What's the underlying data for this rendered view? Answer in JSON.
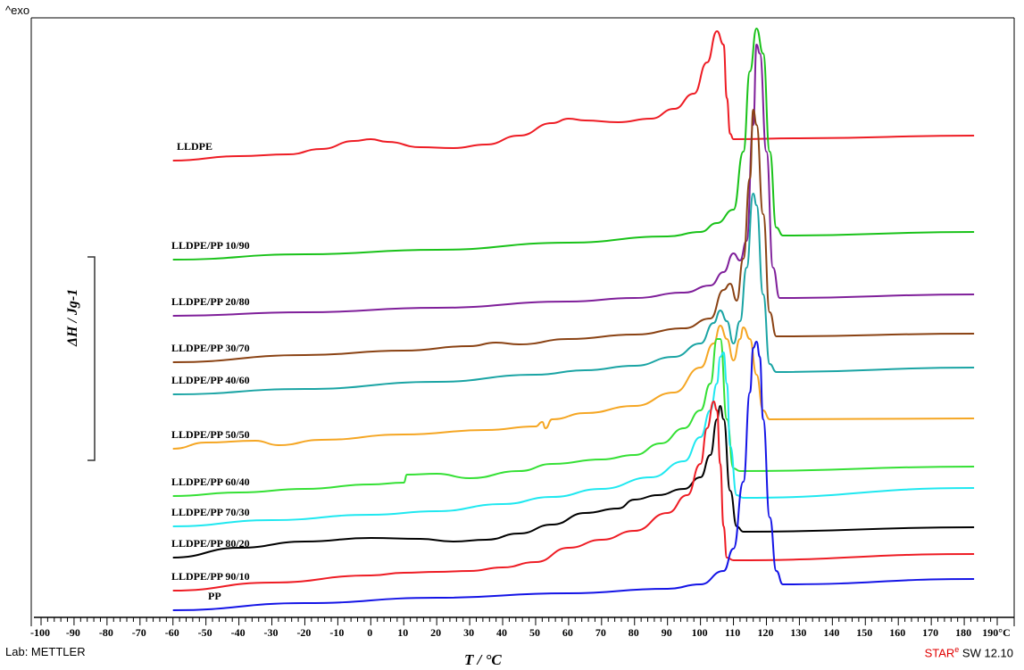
{
  "header": {
    "exo_label": "^exo"
  },
  "footer": {
    "lab_label": "Lab: METTLER",
    "software_star": "STAR",
    "software_sup": "e",
    "software_version": " SW 12.10"
  },
  "chart_data": {
    "type": "line",
    "title": "",
    "xlabel": "T / °C",
    "ylabel": "ΔH / Jg-1",
    "xlim": [
      -100,
      190
    ],
    "x_ticks": [
      "-100",
      "-90",
      "-80",
      "-70",
      "-60",
      "-50",
      "-40",
      "-30",
      "-20",
      "-10",
      "0",
      "10",
      "20",
      "30",
      "40",
      "50",
      "60",
      "70",
      "80",
      "90",
      "100",
      "110",
      "120",
      "130",
      "140",
      "150",
      "160",
      "170",
      "180",
      "190°C"
    ],
    "y_units": "arbitrary (stacked curves)",
    "legend": "none (curve labels at left)",
    "series": [
      {
        "name": "LLDPE",
        "color": "#ee1c24",
        "points": [
          [
            -60,
            180
          ],
          [
            -40,
            175
          ],
          [
            -25,
            173
          ],
          [
            -15,
            167
          ],
          [
            -5,
            158
          ],
          [
            0,
            156
          ],
          [
            5,
            159
          ],
          [
            15,
            165
          ],
          [
            25,
            166
          ],
          [
            35,
            162
          ],
          [
            45,
            152
          ],
          [
            55,
            138
          ],
          [
            60,
            133
          ],
          [
            65,
            135
          ],
          [
            75,
            137
          ],
          [
            85,
            133
          ],
          [
            92,
            122
          ],
          [
            98,
            105
          ],
          [
            102,
            70
          ],
          [
            105,
            35
          ],
          [
            107,
            50
          ],
          [
            108,
            110
          ],
          [
            109,
            150
          ],
          [
            110,
            156
          ],
          [
            130,
            155
          ],
          [
            183,
            152
          ]
        ]
      },
      {
        "name": "LLDPE/PP 10/90",
        "color": "#19c219",
        "points": [
          [
            -60,
            291
          ],
          [
            -20,
            285
          ],
          [
            20,
            280
          ],
          [
            60,
            272
          ],
          [
            90,
            265
          ],
          [
            100,
            260
          ],
          [
            105,
            250
          ],
          [
            110,
            235
          ],
          [
            113,
            170
          ],
          [
            115,
            80
          ],
          [
            117,
            32
          ],
          [
            119,
            60
          ],
          [
            121,
            170
          ],
          [
            123,
            255
          ],
          [
            125,
            264
          ],
          [
            183,
            260
          ]
        ]
      },
      {
        "name": "LLDPE/PP 20/80",
        "color": "#7f1f9a",
        "points": [
          [
            -60,
            354
          ],
          [
            -20,
            350
          ],
          [
            20,
            345
          ],
          [
            60,
            338
          ],
          [
            80,
            334
          ],
          [
            95,
            328
          ],
          [
            103,
            320
          ],
          [
            107,
            305
          ],
          [
            110,
            284
          ],
          [
            112,
            292
          ],
          [
            114,
            270
          ],
          [
            116,
            140
          ],
          [
            117,
            50
          ],
          [
            118,
            60
          ],
          [
            120,
            170
          ],
          [
            122,
            300
          ],
          [
            124,
            334
          ],
          [
            183,
            330
          ]
        ]
      },
      {
        "name": "LLDPE/PP 30/70",
        "color": "#8a4213",
        "points": [
          [
            -60,
            406
          ],
          [
            -20,
            398
          ],
          [
            10,
            393
          ],
          [
            30,
            388
          ],
          [
            38,
            384
          ],
          [
            45,
            386
          ],
          [
            60,
            380
          ],
          [
            80,
            375
          ],
          [
            95,
            368
          ],
          [
            103,
            357
          ],
          [
            107,
            325
          ],
          [
            109,
            318
          ],
          [
            111,
            337
          ],
          [
            113,
            290
          ],
          [
            115,
            200
          ],
          [
            116,
            123
          ],
          [
            117,
            140
          ],
          [
            119,
            240
          ],
          [
            121,
            350
          ],
          [
            123,
            377
          ],
          [
            183,
            374
          ]
        ]
      },
      {
        "name": "LLDPE/PP 40/60",
        "color": "#1aa4a4",
        "points": [
          [
            -60,
            442
          ],
          [
            -20,
            436
          ],
          [
            20,
            428
          ],
          [
            50,
            420
          ],
          [
            65,
            415
          ],
          [
            80,
            410
          ],
          [
            92,
            400
          ],
          [
            100,
            385
          ],
          [
            104,
            362
          ],
          [
            106,
            348
          ],
          [
            108,
            360
          ],
          [
            110,
            385
          ],
          [
            112,
            360
          ],
          [
            114,
            300
          ],
          [
            116,
            217
          ],
          [
            117,
            230
          ],
          [
            119,
            330
          ],
          [
            121,
            408
          ],
          [
            123,
            417
          ],
          [
            183,
            412
          ]
        ]
      },
      {
        "name": "LLDPE/PP 50/50",
        "color": "#f5a623",
        "points": [
          [
            -60,
            503
          ],
          [
            -50,
            496
          ],
          [
            -35,
            494
          ],
          [
            -28,
            499
          ],
          [
            -15,
            493
          ],
          [
            10,
            487
          ],
          [
            35,
            482
          ],
          [
            50,
            478
          ],
          [
            52,
            473
          ],
          [
            53,
            480
          ],
          [
            55,
            470
          ],
          [
            65,
            463
          ],
          [
            80,
            455
          ],
          [
            92,
            440
          ],
          [
            100,
            412
          ],
          [
            104,
            385
          ],
          [
            106,
            365
          ],
          [
            108,
            380
          ],
          [
            110,
            404
          ],
          [
            112,
            380
          ],
          [
            113,
            367
          ],
          [
            115,
            380
          ],
          [
            117,
            420
          ],
          [
            119,
            460
          ],
          [
            121,
            470
          ],
          [
            183,
            469
          ]
        ]
      },
      {
        "name": "LLDPE/PP 60/40",
        "color": "#35e035",
        "points": [
          [
            -60,
            556
          ],
          [
            -40,
            552
          ],
          [
            -20,
            548
          ],
          [
            0,
            543
          ],
          [
            10,
            541
          ],
          [
            11,
            532
          ],
          [
            20,
            531
          ],
          [
            30,
            536
          ],
          [
            45,
            528
          ],
          [
            55,
            520
          ],
          [
            70,
            515
          ],
          [
            80,
            510
          ],
          [
            88,
            497
          ],
          [
            95,
            480
          ],
          [
            100,
            460
          ],
          [
            103,
            430
          ],
          [
            105,
            380
          ],
          [
            106,
            380
          ],
          [
            108,
            470
          ],
          [
            110,
            525
          ],
          [
            112,
            528
          ],
          [
            183,
            523
          ]
        ]
      },
      {
        "name": "LLDPE/PP 70/30",
        "color": "#1fe8f0",
        "points": [
          [
            -60,
            590
          ],
          [
            -30,
            583
          ],
          [
            0,
            577
          ],
          [
            20,
            573
          ],
          [
            40,
            565
          ],
          [
            55,
            557
          ],
          [
            70,
            548
          ],
          [
            85,
            535
          ],
          [
            95,
            517
          ],
          [
            100,
            490
          ],
          [
            103,
            460
          ],
          [
            105,
            430
          ],
          [
            106,
            400
          ],
          [
            107,
            395
          ],
          [
            108,
            430
          ],
          [
            109,
            500
          ],
          [
            111,
            555
          ],
          [
            113,
            558
          ],
          [
            183,
            547
          ]
        ]
      },
      {
        "name": "LLDPE/PP 80/20",
        "color": "#000000",
        "points": [
          [
            -60,
            625
          ],
          [
            -40,
            614
          ],
          [
            -20,
            607
          ],
          [
            0,
            603
          ],
          [
            15,
            604
          ],
          [
            25,
            607
          ],
          [
            35,
            605
          ],
          [
            45,
            598
          ],
          [
            55,
            588
          ],
          [
            65,
            575
          ],
          [
            75,
            570
          ],
          [
            80,
            560
          ],
          [
            87,
            555
          ],
          [
            95,
            548
          ],
          [
            100,
            535
          ],
          [
            103,
            510
          ],
          [
            105,
            470
          ],
          [
            106,
            455
          ],
          [
            107,
            470
          ],
          [
            109,
            550
          ],
          [
            111,
            590
          ],
          [
            113,
            596
          ],
          [
            183,
            591
          ]
        ]
      },
      {
        "name": "LLDPE/PP 90/10",
        "color": "#ee1c24",
        "points": [
          [
            -60,
            662
          ],
          [
            -30,
            653
          ],
          [
            0,
            645
          ],
          [
            10,
            642
          ],
          [
            20,
            641
          ],
          [
            30,
            640
          ],
          [
            40,
            636
          ],
          [
            50,
            630
          ],
          [
            60,
            614
          ],
          [
            70,
            605
          ],
          [
            80,
            595
          ],
          [
            90,
            575
          ],
          [
            96,
            555
          ],
          [
            100,
            520
          ],
          [
            102,
            480
          ],
          [
            104,
            450
          ],
          [
            105,
            460
          ],
          [
            106,
            520
          ],
          [
            107,
            590
          ],
          [
            108,
            625
          ],
          [
            110,
            628
          ],
          [
            183,
            621
          ]
        ]
      },
      {
        "name": "PP",
        "color": "#1414e6",
        "points": [
          [
            -60,
            684
          ],
          [
            -20,
            676
          ],
          [
            20,
            670
          ],
          [
            60,
            665
          ],
          [
            90,
            660
          ],
          [
            100,
            655
          ],
          [
            107,
            640
          ],
          [
            110,
            615
          ],
          [
            113,
            540
          ],
          [
            115,
            440
          ],
          [
            116,
            390
          ],
          [
            117,
            383
          ],
          [
            118,
            400
          ],
          [
            119,
            470
          ],
          [
            121,
            580
          ],
          [
            123,
            640
          ],
          [
            125,
            655
          ],
          [
            183,
            649
          ]
        ]
      }
    ]
  }
}
